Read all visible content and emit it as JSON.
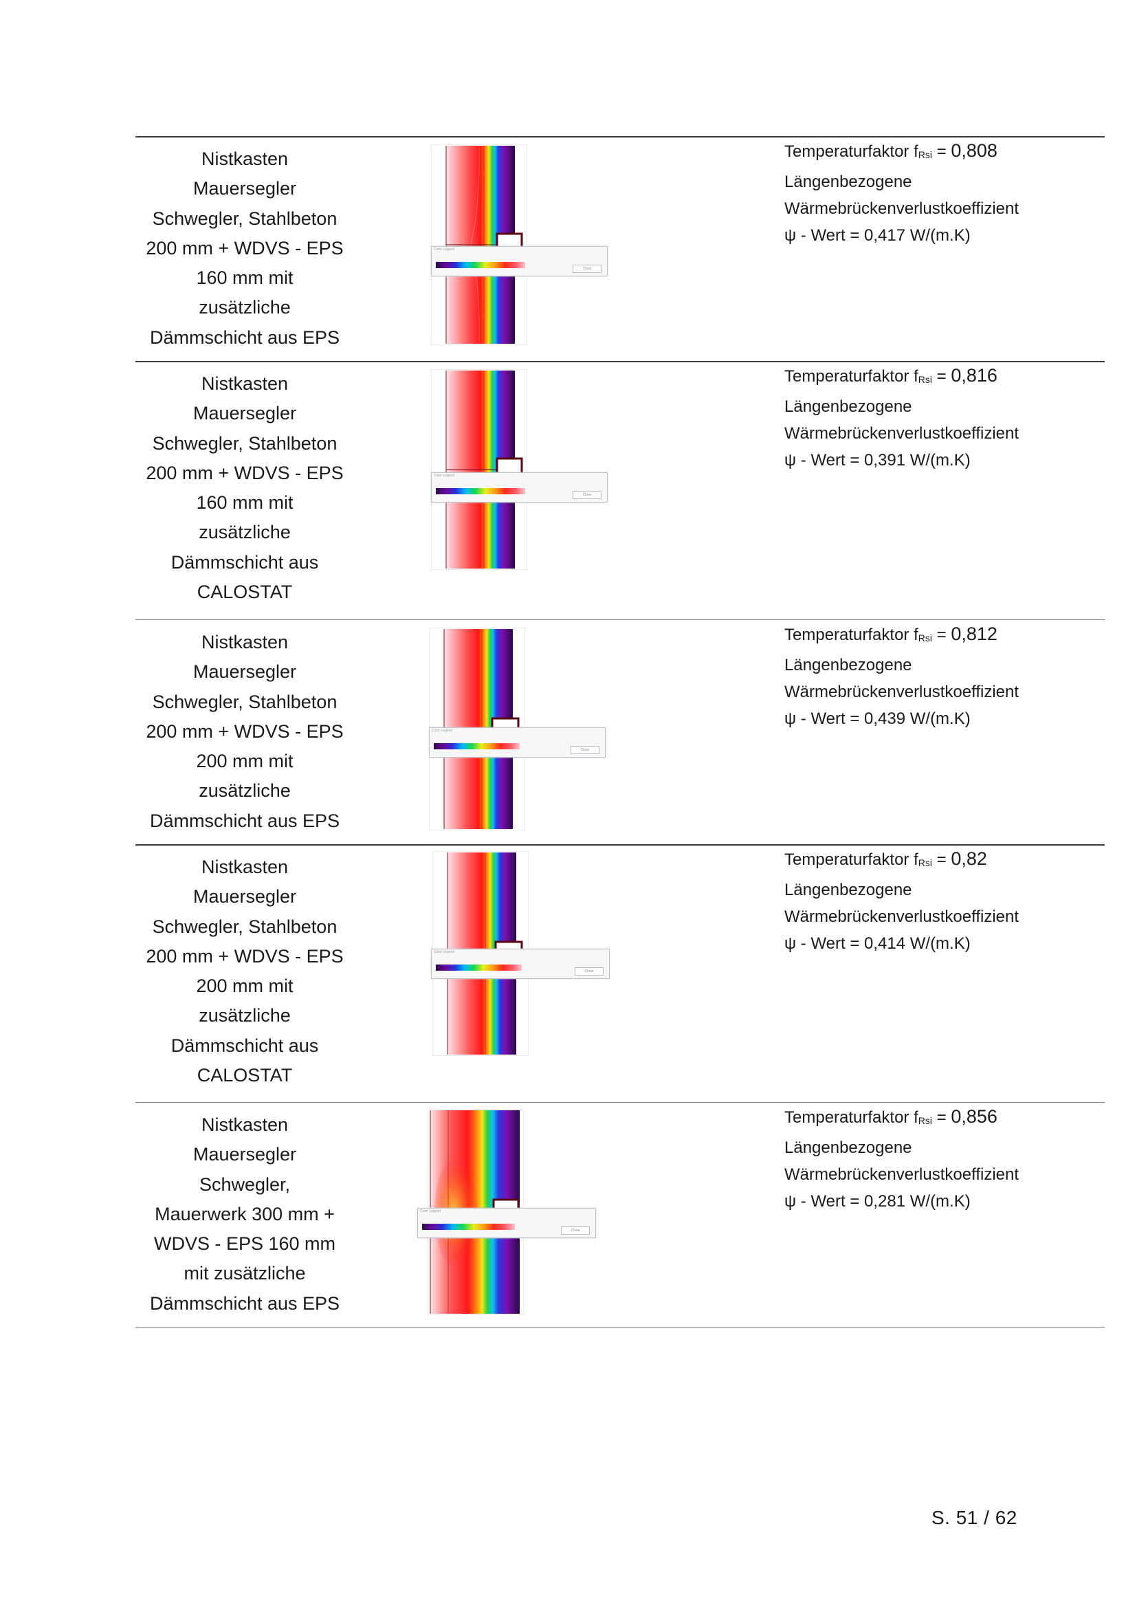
{
  "rows": [
    {
      "desc": [
        "Nistkasten",
        "Mauersegler",
        "Schwegler, Stahlbeton",
        "200 mm + WDVS - EPS",
        "160 mm mit",
        "zusätzliche",
        "Dämmschicht aus EPS"
      ],
      "temp_label": "Temperaturfaktor f",
      "temp_sub": "Rsi",
      "temp_eq": " = ",
      "temp_value": "0,808",
      "line2": "Längenbezogene",
      "line3": "Wärmebrückenverlustkoeffizient",
      "psi": "ψ - Wert = 0,417 W/(m.K)",
      "legend_title": "Color Legend",
      "legend_button": "Close"
    },
    {
      "desc": [
        "Nistkasten",
        "Mauersegler",
        "Schwegler, Stahlbeton",
        "200 mm + WDVS - EPS",
        "160 mm mit",
        "zusätzliche",
        "Dämmschicht aus",
        "CALOSTAT"
      ],
      "temp_label": "Temperaturfaktor f",
      "temp_sub": "Rsi",
      "temp_eq": " = ",
      "temp_value": "0,816",
      "line2": "Längenbezogene",
      "line3": "Wärmebrückenverlustkoeffizient",
      "psi": "ψ - Wert = 0,391 W/(m.K)",
      "legend_title": "Color Legend",
      "legend_button": "Close"
    },
    {
      "desc": [
        "Nistkasten",
        "Mauersegler",
        "Schwegler, Stahlbeton",
        "200 mm + WDVS - EPS",
        "200 mm mit",
        "zusätzliche",
        "Dämmschicht aus EPS"
      ],
      "temp_label": "Temperaturfaktor f",
      "temp_sub": "Rsi",
      "temp_eq": " = ",
      "temp_value": "0,812",
      "line2": "Längenbezogene",
      "line3": "Wärmebrückenverlustkoeffizient",
      "psi": "ψ - Wert = 0,439 W/(m.K)",
      "legend_title": "Color Legend",
      "legend_button": "Close"
    },
    {
      "desc": [
        "Nistkasten",
        "Mauersegler",
        "Schwegler, Stahlbeton",
        "200 mm + WDVS - EPS",
        "200 mm mit",
        "zusätzliche",
        "Dämmschicht aus",
        "CALOSTAT"
      ],
      "temp_label": "Temperaturfaktor f",
      "temp_sub": "Rsi",
      "temp_eq": " = ",
      "temp_value": "0,82",
      "line2": "Längenbezogene",
      "line3": "Wärmebrückenverlustkoeffizient",
      "psi": "ψ - Wert = 0,414 W/(m.K)",
      "legend_title": "Color Legend",
      "legend_button": "Close"
    },
    {
      "desc": [
        "Nistkasten",
        "Mauersegler",
        "Schwegler,",
        "Mauerwerk 300 mm +",
        "WDVS - EPS 160 mm",
        "mit zusätzliche",
        "Dämmschicht aus EPS"
      ],
      "temp_label": "Temperaturfaktor f",
      "temp_sub": "Rsi",
      "temp_eq": " = ",
      "temp_value": "0,856",
      "line2": "Längenbezogene",
      "line3": "Wärmebrückenverlustkoeffizient",
      "psi": "ψ - Wert = 0,281 W/(m.K)",
      "legend_title": "Color Legend",
      "legend_button": "Close"
    }
  ],
  "footer": {
    "page": "S. 51 / 62"
  }
}
